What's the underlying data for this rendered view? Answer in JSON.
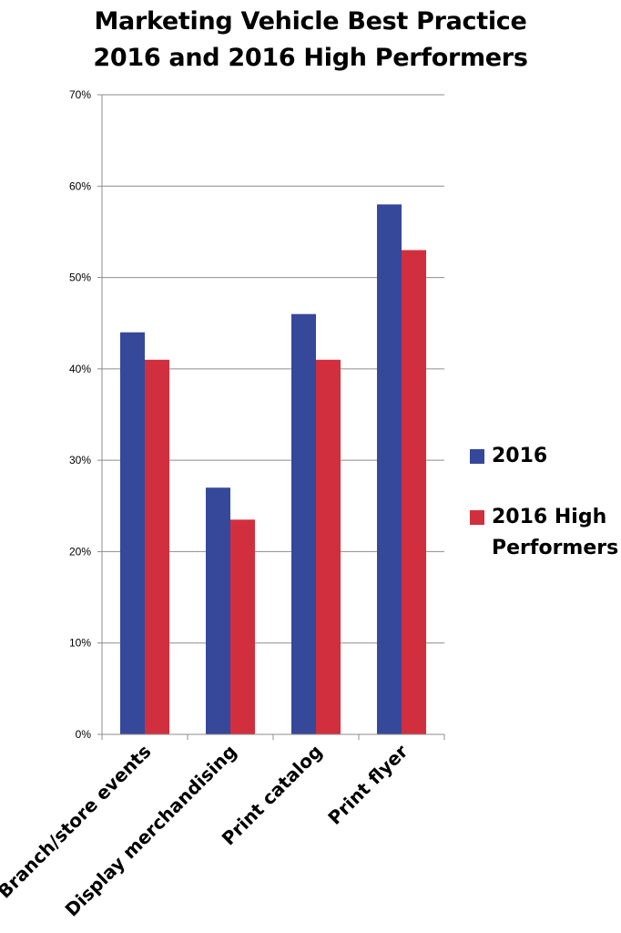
{
  "chart_data": {
    "type": "bar",
    "title": [
      "Marketing Vehicle Best Practice",
      "2016 and 2016 High Performers"
    ],
    "xlabel": "",
    "ylabel": "",
    "categories": [
      "Branch/store events",
      "Display merchandising",
      "Print catalog",
      "Print flyer"
    ],
    "series": [
      {
        "name": "2016",
        "values": [
          44,
          27,
          46,
          58
        ],
        "color": "#36489a"
      },
      {
        "name": "2016 High Performers",
        "values": [
          41,
          23.5,
          41,
          53
        ],
        "color": "#d22f3e"
      }
    ],
    "ylim": [
      0,
      70
    ],
    "yticks": [
      "0%",
      "10%",
      "20%",
      "30%",
      "40%",
      "50%",
      "60%",
      "70%"
    ],
    "grid": true,
    "legend_position": "right"
  }
}
